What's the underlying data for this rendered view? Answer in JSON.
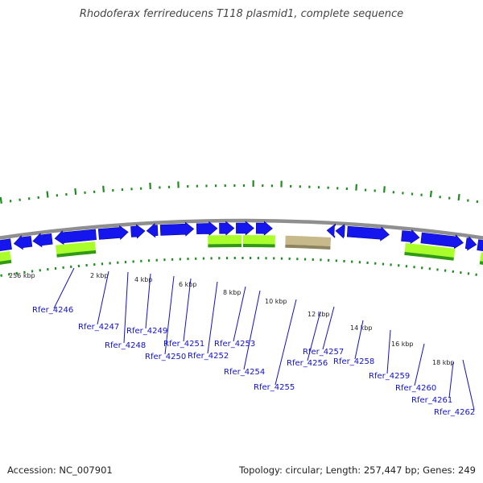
{
  "title": "Rhodoferax ferrireducens T118 plasmid1, complete sequence",
  "footer": {
    "accession": "Accession: NC_007901",
    "summary": "Topology: circular; Length: 257,447 bp; Genes: 249"
  },
  "colors": {
    "backbone": "#8f8f8f",
    "cds": "#1515ee",
    "cds_edge": "#0a0a9a",
    "gene_light": "#aaff2a",
    "gene_dark": "#2f9a12",
    "gene_tan": "#c7b98a",
    "gc_skew": "#1e8c1e",
    "label": "#1010cc",
    "scale_text": "#222222"
  },
  "genome": {
    "length_bp": 257447
  },
  "scale_labels": [
    "256 kbp",
    "2 kbp",
    "4 kbp",
    "6 kbp",
    "8 kbp",
    "10 kbp",
    "12 kbp",
    "14 kbp",
    "16 kbp",
    "18 kbp"
  ],
  "gene_labels": [
    "Rfer_4246",
    "Rfer_4247",
    "Rfer_4248",
    "Rfer_4249",
    "Rfer_4250",
    "Rfer_4251",
    "Rfer_4252",
    "Rfer_4253",
    "Rfer_4254",
    "Rfer_4255",
    "Rfer_4256",
    "Rfer_4257",
    "Rfer_4258",
    "Rfer_4259",
    "Rfer_4260",
    "Rfer_4261",
    "Rfer_4262"
  ]
}
